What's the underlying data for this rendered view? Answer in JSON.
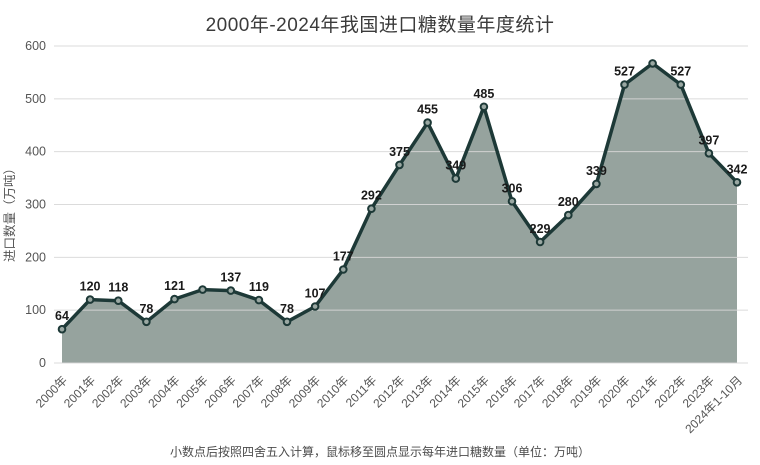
{
  "title": "2000年-2024年我国进口糖数量年度统计",
  "footer_note": "小数点后按照四舍五入计算，鼠标移至圆点显示每年进口糖数量（单位：万吨）",
  "chart_data": {
    "type": "area",
    "title": "2000年-2024年我国进口糖数量年度统计",
    "categories": [
      "2000年",
      "2001年",
      "2002年",
      "2003年",
      "2004年",
      "2005年",
      "2006年",
      "2007年",
      "2008年",
      "2009年",
      "2010年",
      "2011年",
      "2012年",
      "2013年",
      "2014年",
      "2015年",
      "2016年",
      "2017年",
      "2018年",
      "2019年",
      "2020年",
      "2021年",
      "2022年",
      "2023年",
      "2024年1-10月"
    ],
    "values": [
      64,
      120,
      118,
      78,
      121,
      139,
      137,
      119,
      78,
      107,
      177,
      292,
      375,
      455,
      349,
      485,
      306,
      229,
      280,
      339,
      527,
      567,
      527,
      397,
      342
    ],
    "xlabel": "",
    "ylabel": "进口数量（万吨）",
    "ylim": [
      0,
      600
    ],
    "ytick_step": 100,
    "grid": true,
    "legend": false,
    "unlabeled_point_indices": [
      5,
      21
    ],
    "colors": {
      "line": "#1d3937",
      "area": "#96a39e",
      "marker_fill": "#9aa8a3",
      "marker_stroke": "#1d3937",
      "grid": "#d7d7d7",
      "value_label": "#1a1a1a",
      "axis_tick_label": "#555555",
      "axis_title": "#555555",
      "title": "#3b3b3b",
      "footer": "#4c4c4c",
      "background": "#ffffff"
    }
  }
}
